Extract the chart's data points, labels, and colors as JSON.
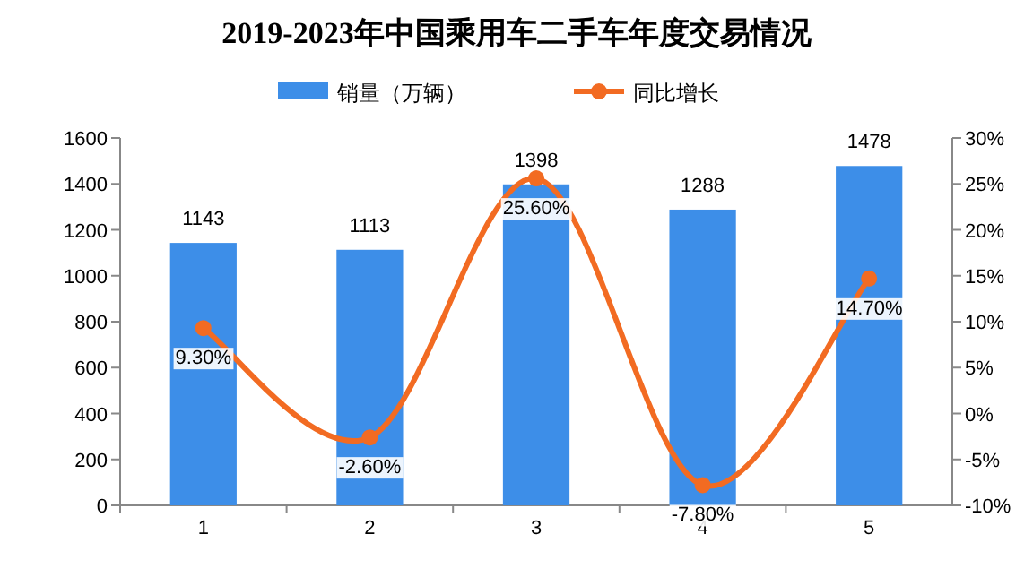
{
  "chart_data": {
    "type": "bar",
    "title": "2019-2023年中国乘用车二手车年度交易情况",
    "categories": [
      "1",
      "2",
      "3",
      "4",
      "5"
    ],
    "series": [
      {
        "name": "销量（万辆）",
        "color": "#3d8ee8",
        "values": [
          1143,
          1113,
          1398,
          1288,
          1478
        ],
        "value_labels": [
          "1143",
          "1113",
          "1398",
          "1288",
          "1478"
        ]
      },
      {
        "name": "同比增长",
        "type": "line",
        "axis": "y2",
        "color": "#f26b22",
        "marker": "circle",
        "values": [
          9.3,
          -2.6,
          25.6,
          -7.8,
          14.7
        ],
        "value_labels": [
          "9.30%",
          "-2.60%",
          "25.60%",
          "-7.80%",
          "14.70%"
        ]
      }
    ],
    "ylim": [
      0,
      1600
    ],
    "yticks": [
      0,
      200,
      400,
      600,
      800,
      1000,
      1200,
      1400,
      1600
    ],
    "y2lim": [
      -10,
      30
    ],
    "y2ticks": [
      {
        "value": -10,
        "label": "-10%"
      },
      {
        "value": -5,
        "label": "-5%"
      },
      {
        "value": 0,
        "label": "0%"
      },
      {
        "value": 5,
        "label": "5%"
      },
      {
        "value": 10,
        "label": "10%"
      },
      {
        "value": 15,
        "label": "15%"
      },
      {
        "value": 20,
        "label": "20%"
      },
      {
        "value": 25,
        "label": "25%"
      },
      {
        "value": 30,
        "label": "30%"
      }
    ],
    "legend": "top",
    "grid": false
  }
}
